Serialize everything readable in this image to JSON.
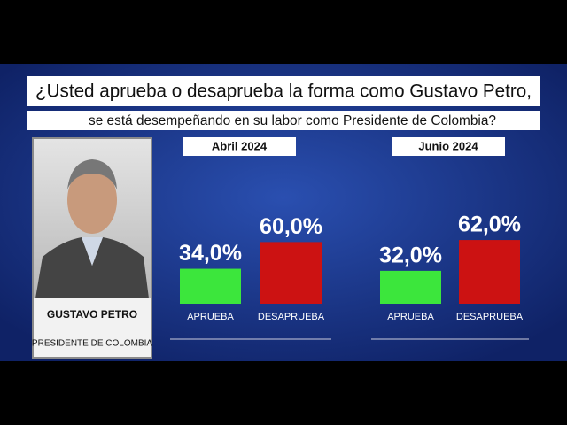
{
  "header": {
    "line1": "¿Usted aprueba o desaprueba la forma como Gustavo Petro,",
    "line2": "se está desempeñando en su labor como Presidente de Colombia?"
  },
  "profile": {
    "name": "GUSTAVO PETRO",
    "role": "PRESIDENTE DE COLOMBIA"
  },
  "chart_data": [
    {
      "type": "bar",
      "title": "Abril 2024",
      "categories": [
        "APRUEBA",
        "DESAPRUEBA"
      ],
      "values": [
        34,
        60
      ],
      "value_labels": [
        "34,0%",
        "60,0%"
      ],
      "colors": [
        "#3ce63c",
        "#cc1212"
      ]
    },
    {
      "type": "bar",
      "title": "Junio 2024",
      "categories": [
        "APRUEBA",
        "DESAPRUEBA"
      ],
      "values": [
        32,
        62
      ],
      "value_labels": [
        "32,0%",
        "62,0%"
      ],
      "colors": [
        "#3ce63c",
        "#cc1212"
      ]
    }
  ]
}
